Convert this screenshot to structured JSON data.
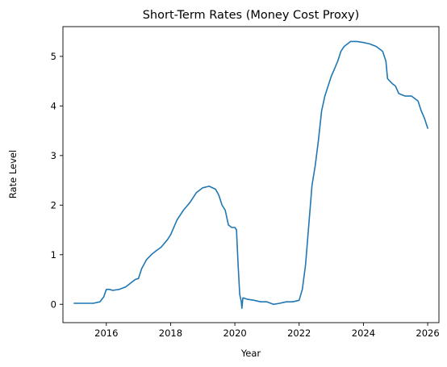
{
  "chart_data": {
    "type": "line",
    "title": "Short-Term Rates (Money Cost Proxy)",
    "xlabel": "Year",
    "ylabel": "Rate Level",
    "xlim": [
      2014.65,
      2026.35
    ],
    "ylim": [
      -0.37,
      5.6
    ],
    "xticks": [
      2016,
      2018,
      2020,
      2022,
      2024,
      2026
    ],
    "yticks": [
      0,
      1,
      2,
      3,
      4,
      5
    ],
    "grid": false,
    "legend": "none",
    "colors": {
      "series": "#1f77b4"
    },
    "series": [
      {
        "x": [
          2015.0,
          2015.3,
          2015.6,
          2015.8,
          2015.92,
          2016.0,
          2016.1,
          2016.2,
          2016.4,
          2016.6,
          2016.8,
          2016.9,
          2017.0,
          2017.1,
          2017.25,
          2017.4,
          2017.55,
          2017.7,
          2017.9,
          2018.0,
          2018.2,
          2018.4,
          2018.6,
          2018.8,
          2019.0,
          2019.2,
          2019.4,
          2019.5,
          2019.6,
          2019.7,
          2019.8,
          2019.9,
          2020.0,
          2020.05,
          2020.1,
          2020.15,
          2020.2,
          2020.22,
          2020.25,
          2020.3,
          2020.4,
          2020.6,
          2020.8,
          2021.0,
          2021.2,
          2021.4,
          2021.6,
          2021.8,
          2022.0,
          2022.1,
          2022.2,
          2022.3,
          2022.4,
          2022.5,
          2022.6,
          2022.7,
          2022.8,
          2022.9,
          2023.0,
          2023.1,
          2023.2,
          2023.3,
          2023.4,
          2023.5,
          2023.6,
          2023.8,
          2024.0,
          2024.2,
          2024.4,
          2024.6,
          2024.7,
          2024.75,
          2024.9,
          2025.0,
          2025.1,
          2025.3,
          2025.5,
          2025.7,
          2025.8,
          2025.9,
          2026.0
        ],
        "values": [
          0.02,
          0.02,
          0.02,
          0.05,
          0.15,
          0.3,
          0.3,
          0.28,
          0.3,
          0.35,
          0.45,
          0.5,
          0.52,
          0.72,
          0.9,
          1.0,
          1.08,
          1.15,
          1.3,
          1.4,
          1.7,
          1.9,
          2.05,
          2.25,
          2.35,
          2.38,
          2.32,
          2.2,
          2.0,
          1.9,
          1.6,
          1.55,
          1.55,
          1.5,
          0.8,
          0.2,
          0.05,
          -0.08,
          0.13,
          0.12,
          0.1,
          0.08,
          0.05,
          0.05,
          0.0,
          0.02,
          0.05,
          0.05,
          0.08,
          0.3,
          0.8,
          1.6,
          2.4,
          2.8,
          3.3,
          3.9,
          4.2,
          4.4,
          4.6,
          4.75,
          4.9,
          5.1,
          5.2,
          5.25,
          5.3,
          5.3,
          5.28,
          5.25,
          5.2,
          5.1,
          4.9,
          4.55,
          4.45,
          4.4,
          4.25,
          4.2,
          4.2,
          4.1,
          3.9,
          3.75,
          3.55
        ]
      }
    ]
  }
}
